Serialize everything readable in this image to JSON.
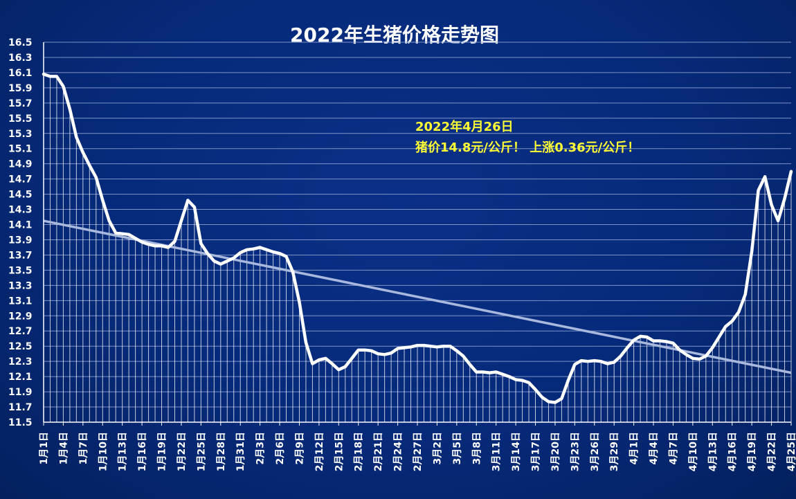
{
  "chart_data": {
    "type": "line",
    "title": "2022年生猪价格走势图",
    "ylabel": "",
    "xlabel": "",
    "ylim": [
      11.5,
      16.5
    ],
    "y_ticks": [
      "16.5",
      "16.3",
      "16.1",
      "15.9",
      "15.7",
      "15.5",
      "15.3",
      "15.1",
      "14.9",
      "14.7",
      "14.5",
      "14.3",
      "14.1",
      "13.9",
      "13.7",
      "13.5",
      "13.3",
      "13.1",
      "12.9",
      "12.7",
      "12.5",
      "12.3",
      "12.1",
      "11.9",
      "11.7",
      "11.5"
    ],
    "x_tick_labels": [
      "1月1日",
      "1月4日",
      "1月7日",
      "1月10日",
      "1月13日",
      "1月16日",
      "1月19日",
      "1月22日",
      "1月25日",
      "1月28日",
      "1月31日",
      "2月3日",
      "2月6日",
      "2月9日",
      "2月12日",
      "2月15日",
      "2月18日",
      "2月21日",
      "2月24日",
      "2月27日",
      "3月2日",
      "3月5日",
      "3月8日",
      "3月11日",
      "3月14日",
      "3月17日",
      "3月20日",
      "3月23日",
      "3月26日",
      "3月29日",
      "4月1日",
      "4月4日",
      "4月7日",
      "4月10日",
      "4月13日",
      "4月16日",
      "4月19日",
      "4月22日",
      "4月25日"
    ],
    "grid": true,
    "series": [
      {
        "values": [
          16.08,
          16.05,
          16.05,
          15.92,
          15.62,
          15.25,
          15.05,
          14.88,
          14.72,
          14.42,
          14.15,
          13.99,
          13.98,
          13.97,
          13.92,
          13.87,
          13.84,
          13.82,
          13.82,
          13.8,
          13.88,
          14.15,
          14.42,
          14.33,
          13.85,
          13.72,
          13.62,
          13.58,
          13.62,
          13.66,
          13.73,
          13.77,
          13.78,
          13.8,
          13.77,
          13.74,
          13.72,
          13.68,
          13.48,
          13.08,
          12.55,
          12.27,
          12.32,
          12.34,
          12.27,
          12.19,
          12.23,
          12.34,
          12.45,
          12.45,
          12.44,
          12.4,
          12.39,
          12.41,
          12.47,
          12.48,
          12.49,
          12.51,
          12.51,
          12.5,
          12.49,
          12.5,
          12.5,
          12.44,
          12.37,
          12.26,
          12.16,
          12.16,
          12.15,
          12.16,
          12.13,
          12.1,
          12.06,
          12.05,
          12.02,
          11.93,
          11.83,
          11.77,
          11.76,
          11.81,
          12.05,
          12.26,
          12.31,
          12.3,
          12.31,
          12.3,
          12.27,
          12.29,
          12.37,
          12.48,
          12.58,
          12.63,
          12.62,
          12.57,
          12.57,
          12.56,
          12.54,
          12.45,
          12.39,
          12.34,
          12.33,
          12.37,
          12.48,
          12.62,
          12.76,
          12.83,
          12.95,
          13.18,
          13.75,
          14.55,
          14.73,
          14.36,
          14.15,
          14.44,
          14.8
        ]
      }
    ],
    "trendline": {
      "start": 14.15,
      "end": 12.15
    },
    "annotation": {
      "line1": "2022年4月26日",
      "line2": "猪价14.8元/公斤！ 上涨0.36元/公斤！"
    },
    "colors": {
      "line": "#ffffff",
      "trend": "#a9b8dd",
      "drop": "#ffffff",
      "grid": "#7f93c8",
      "annotation": "#ffff33"
    }
  }
}
